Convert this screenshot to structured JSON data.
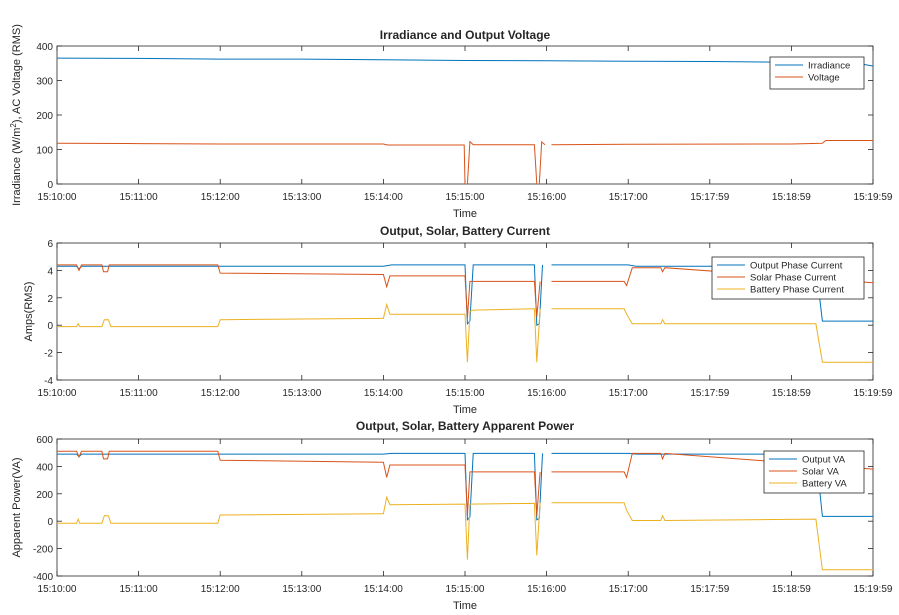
{
  "chart_data": [
    {
      "type": "line",
      "title": "Irradiance and Output Voltage",
      "xlabel": "Time",
      "ylabel_html": [
        "Irradiance (W/m",
        "2",
        "), AC Voltage (RMS)"
      ],
      "ylim": [
        0,
        400
      ],
      "yticks": [
        "0",
        "100",
        "200",
        "300",
        "400"
      ],
      "xticks": [
        "15:10:00",
        "15:11:00",
        "15:12:00",
        "15:13:00",
        "15:14:00",
        "15:15:00",
        "15:16:00",
        "15:17:00",
        "15:17:59",
        "15:18:59",
        "15:19:59"
      ],
      "legend_position": "top-right",
      "series": [
        {
          "name": "Irradiance",
          "color": "#0072BD",
          "points": [
            [
              0,
              365
            ],
            [
              1,
              364
            ],
            [
              2,
              362
            ],
            [
              3,
              362
            ],
            [
              4,
              360
            ],
            [
              5,
              358
            ],
            [
              6,
              357
            ],
            [
              7,
              356
            ],
            [
              8,
              355
            ],
            [
              9,
              353
            ],
            [
              9.8,
              350
            ],
            [
              10,
              342
            ]
          ]
        },
        {
          "name": "Voltage",
          "color": "#D95319",
          "points": [
            [
              0,
              118
            ],
            [
              1,
              117
            ],
            [
              2,
              116
            ],
            [
              3,
              116
            ],
            [
              4,
              116
            ],
            [
              4.05,
              113
            ],
            [
              4.99,
              113
            ],
            [
              5.0,
              0
            ],
            [
              5.03,
              0
            ],
            [
              5.06,
              123
            ],
            [
              5.1,
              114
            ],
            [
              5.85,
              114
            ],
            [
              5.88,
              0
            ],
            [
              5.91,
              0
            ],
            [
              5.94,
              122
            ],
            [
              5.98,
              114
            ],
            [
              6.02,
              null
            ],
            [
              6.06,
              114
            ],
            [
              7,
              115
            ],
            [
              9,
              116
            ],
            [
              9.38,
              118
            ],
            [
              9.42,
              126
            ],
            [
              10,
              126
            ]
          ]
        }
      ]
    },
    {
      "type": "line",
      "title": "Output, Solar, Battery Current",
      "xlabel": "Time",
      "ylabel": "Amps(RMS)",
      "ylim": [
        -4,
        6
      ],
      "yticks": [
        "-4",
        "-2",
        "0",
        "2",
        "4",
        "6"
      ],
      "xticks": [
        "15:10:00",
        "15:11:00",
        "15:12:00",
        "15:13:00",
        "15:14:00",
        "15:15:00",
        "15:16:00",
        "15:17:00",
        "15:17:59",
        "15:18:59",
        "15:19:59"
      ],
      "legend_position": "top-right",
      "series": [
        {
          "name": "Output Phase Current",
          "color": "#0072BD",
          "points": [
            [
              0,
              4.3
            ],
            [
              0.24,
              4.3
            ],
            [
              0.27,
              4.1
            ],
            [
              0.3,
              4.3
            ],
            [
              4.0,
              4.3
            ],
            [
              4.1,
              4.4
            ],
            [
              5.0,
              4.4
            ],
            [
              5.03,
              0.1
            ],
            [
              5.06,
              0.3
            ],
            [
              5.1,
              4.4
            ],
            [
              5.85,
              4.4
            ],
            [
              5.88,
              0.0
            ],
            [
              5.91,
              0.1
            ],
            [
              5.95,
              4.4
            ],
            [
              6.02,
              null
            ],
            [
              6.06,
              4.4
            ],
            [
              7.0,
              4.4
            ],
            [
              7.1,
              4.3
            ],
            [
              9.3,
              4.3
            ],
            [
              9.38,
              0.3
            ],
            [
              10,
              0.3
            ]
          ]
        },
        {
          "name": "Solar Phase Current",
          "color": "#D95319",
          "points": [
            [
              0,
              4.4
            ],
            [
              0.24,
              4.4
            ],
            [
              0.27,
              4.0
            ],
            [
              0.3,
              4.4
            ],
            [
              0.55,
              4.4
            ],
            [
              0.57,
              3.9
            ],
            [
              0.62,
              3.9
            ],
            [
              0.64,
              4.4
            ],
            [
              1.97,
              4.4
            ],
            [
              2.0,
              3.8
            ],
            [
              4.0,
              3.7
            ],
            [
              4.04,
              2.8
            ],
            [
              4.08,
              3.6
            ],
            [
              5.0,
              3.6
            ],
            [
              5.03,
              0.5
            ],
            [
              5.06,
              3.2
            ],
            [
              5.85,
              3.2
            ],
            [
              5.88,
              0.6
            ],
            [
              5.92,
              3.2
            ],
            [
              6.02,
              null
            ],
            [
              6.06,
              3.2
            ],
            [
              6.95,
              3.2
            ],
            [
              6.98,
              2.9
            ],
            [
              7.05,
              4.2
            ],
            [
              7.4,
              4.2
            ],
            [
              7.42,
              3.9
            ],
            [
              7.45,
              4.2
            ],
            [
              10,
              3.1
            ]
          ]
        },
        {
          "name": "Battery Phase Current",
          "color": "#EDB120",
          "points": [
            [
              0,
              -0.1
            ],
            [
              0.24,
              -0.1
            ],
            [
              0.26,
              0.1
            ],
            [
              0.28,
              -0.1
            ],
            [
              0.55,
              -0.1
            ],
            [
              0.58,
              0.4
            ],
            [
              0.63,
              0.4
            ],
            [
              0.66,
              -0.1
            ],
            [
              1.97,
              -0.1
            ],
            [
              2.0,
              0.4
            ],
            [
              4.0,
              0.5
            ],
            [
              4.04,
              1.5
            ],
            [
              4.08,
              0.8
            ],
            [
              5.0,
              0.8
            ],
            [
              5.03,
              -2.7
            ],
            [
              5.06,
              1.0
            ],
            [
              5.1,
              1.1
            ],
            [
              5.85,
              1.2
            ],
            [
              5.88,
              -2.7
            ],
            [
              5.92,
              1.2
            ],
            [
              6.02,
              null
            ],
            [
              6.06,
              1.2
            ],
            [
              6.95,
              1.2
            ],
            [
              6.98,
              0.8
            ],
            [
              7.05,
              0.1
            ],
            [
              7.4,
              0.1
            ],
            [
              7.42,
              0.4
            ],
            [
              7.45,
              0.1
            ],
            [
              9.3,
              0.1
            ],
            [
              9.38,
              -2.7
            ],
            [
              10,
              -2.7
            ]
          ]
        }
      ]
    },
    {
      "type": "line",
      "title": "Output, Solar, Battery Apparent Power",
      "xlabel": "Time",
      "ylabel": "Apparent Power(VA)",
      "ylim": [
        -400,
        600
      ],
      "yticks": [
        "-400",
        "-200",
        "0",
        "200",
        "400",
        "600"
      ],
      "xticks": [
        "15:10:00",
        "15:11:00",
        "15:12:00",
        "15:13:00",
        "15:14:00",
        "15:15:00",
        "15:16:00",
        "15:17:00",
        "15:17:59",
        "15:18:59",
        "15:19:59"
      ],
      "legend_position": "top-right",
      "series": [
        {
          "name": "Output VA",
          "color": "#0072BD",
          "points": [
            [
              0,
              490
            ],
            [
              0.24,
              490
            ],
            [
              0.27,
              470
            ],
            [
              0.3,
              490
            ],
            [
              4.0,
              490
            ],
            [
              4.1,
              495
            ],
            [
              5.0,
              495
            ],
            [
              5.03,
              10
            ],
            [
              5.06,
              30
            ],
            [
              5.1,
              495
            ],
            [
              5.85,
              495
            ],
            [
              5.88,
              10
            ],
            [
              5.91,
              20
            ],
            [
              5.95,
              495
            ],
            [
              6.02,
              null
            ],
            [
              6.06,
              495
            ],
            [
              7.0,
              495
            ],
            [
              7.1,
              490
            ],
            [
              9.3,
              490
            ],
            [
              9.38,
              35
            ],
            [
              10,
              35
            ]
          ]
        },
        {
          "name": "Solar VA",
          "color": "#D95319",
          "points": [
            [
              0,
              510
            ],
            [
              0.24,
              510
            ],
            [
              0.27,
              470
            ],
            [
              0.3,
              510
            ],
            [
              0.55,
              510
            ],
            [
              0.57,
              455
            ],
            [
              0.62,
              455
            ],
            [
              0.64,
              510
            ],
            [
              1.97,
              510
            ],
            [
              2.0,
              445
            ],
            [
              4.0,
              430
            ],
            [
              4.04,
              320
            ],
            [
              4.08,
              410
            ],
            [
              5.0,
              410
            ],
            [
              5.03,
              40
            ],
            [
              5.06,
              360
            ],
            [
              5.85,
              360
            ],
            [
              5.88,
              40
            ],
            [
              5.92,
              360
            ],
            [
              6.02,
              null
            ],
            [
              6.06,
              360
            ],
            [
              6.95,
              360
            ],
            [
              6.98,
              320
            ],
            [
              7.05,
              495
            ],
            [
              7.4,
              495
            ],
            [
              7.42,
              455
            ],
            [
              7.45,
              495
            ],
            [
              10,
              380
            ]
          ]
        },
        {
          "name": "Battery VA",
          "color": "#EDB120",
          "points": [
            [
              0,
              -15
            ],
            [
              0.24,
              -15
            ],
            [
              0.26,
              15
            ],
            [
              0.28,
              -15
            ],
            [
              0.55,
              -15
            ],
            [
              0.58,
              40
            ],
            [
              0.63,
              40
            ],
            [
              0.66,
              -15
            ],
            [
              1.97,
              -15
            ],
            [
              2.0,
              45
            ],
            [
              4.0,
              55
            ],
            [
              4.04,
              175
            ],
            [
              4.08,
              120
            ],
            [
              5.0,
              125
            ],
            [
              5.03,
              -280
            ],
            [
              5.06,
              125
            ],
            [
              5.85,
              130
            ],
            [
              5.88,
              -250
            ],
            [
              5.92,
              135
            ],
            [
              6.02,
              null
            ],
            [
              6.06,
              135
            ],
            [
              6.95,
              135
            ],
            [
              6.98,
              80
            ],
            [
              7.05,
              5
            ],
            [
              7.4,
              5
            ],
            [
              7.42,
              40
            ],
            [
              7.45,
              5
            ],
            [
              9.3,
              15
            ],
            [
              9.38,
              -355
            ],
            [
              10,
              -355
            ]
          ]
        }
      ]
    }
  ]
}
